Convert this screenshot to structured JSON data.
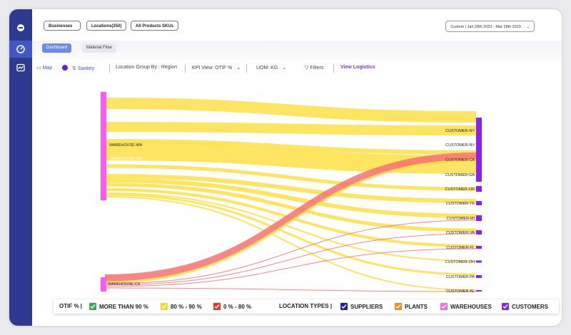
{
  "filters": {
    "businesses": "Businesses",
    "locations": "Locations(250)",
    "products": "All Products SKUs",
    "date": "Custom | Jan 28th 2022 - Mar 28th 2023"
  },
  "tabs": [
    "Dashboard",
    "Material Flow"
  ],
  "toolbar": {
    "map": "Map",
    "sankey": "Sankey",
    "location_group": "Location Group By : Region",
    "kpi_view": "KPI View:  OTIF %",
    "uom": "UOM:  KG",
    "filters": "Filters",
    "view_logistics": "View Logistics"
  },
  "sources": [
    {
      "label": "WAREHOUSE-WA",
      "label2": "WAREHOUSE-WA"
    },
    {
      "label": "WAREHOUSE-CA"
    }
  ],
  "targets": [
    "CUSTOMER-NY",
    "CUSTOMER-NV",
    "CUSTOMER-CA",
    "CUSTOMER-GA",
    "CUSTOMER-OR",
    "CUSTOMER-TE",
    "CUSTOMER-MI",
    "CUSTOMER-VA",
    "CUSTOMER-FL",
    "CUSTOMER-OH",
    "CUSTOMER-PA",
    "CUSTOMER-AL"
  ],
  "legend": {
    "otif_label": "OTIF % |",
    "otif_items": [
      {
        "label": "MORE THAN 90 %",
        "color": "#3aa655"
      },
      {
        "label": "80 % - 90 %",
        "color": "#f7d428"
      },
      {
        "label": "0 % - 80 %",
        "color": "#e8322c"
      }
    ],
    "types_label": "LOCATION TYPES  |",
    "type_items": [
      {
        "label": "SUPPLIERS",
        "color": "#1d1fa8"
      },
      {
        "label": "PLANTS",
        "color": "#f08a2a"
      },
      {
        "label": "WAREHOUSES",
        "color": "#f56be0"
      },
      {
        "label": "CUSTOMERS",
        "color": "#8a22f0"
      }
    ]
  },
  "colors": {
    "yellow": "#fde047",
    "red": "#f87171",
    "warehouse": "#fb5bf0",
    "customer": "#8b21f0",
    "sidebar": "#2e3a8f",
    "accent": "#7c3aed"
  }
}
